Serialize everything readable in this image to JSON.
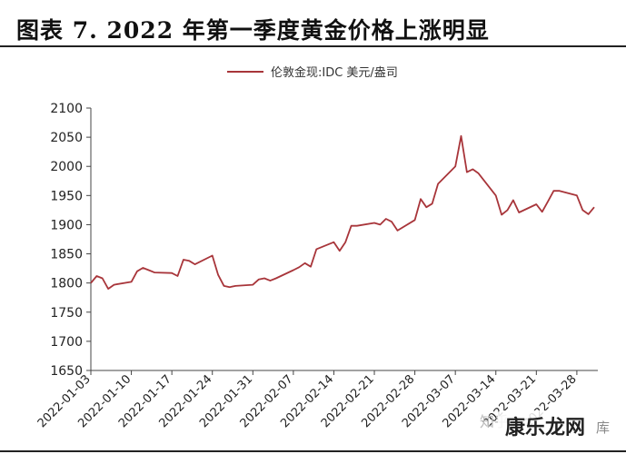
{
  "figure": {
    "title": "图表 7.  2022 年第一季度黄金价格上涨明显"
  },
  "watermark": {
    "left_text": "知乎",
    "right_text": "康乐龙网",
    "suffix": "库"
  },
  "chart_data": {
    "type": "line",
    "title": "图表 7.  2022 年第一季度黄金价格上涨明显",
    "xlabel": "",
    "ylabel": "",
    "ylim": [
      1650,
      2100
    ],
    "yticks": [
      1650,
      1700,
      1750,
      1800,
      1850,
      1900,
      1950,
      2000,
      2050,
      2100
    ],
    "xticks": [
      "2022-01-03",
      "2022-01-10",
      "2022-01-17",
      "2022-01-24",
      "2022-01-31",
      "2022-02-07",
      "2022-02-14",
      "2022-02-21",
      "2022-02-28",
      "2022-03-07",
      "2022-03-14",
      "2022-03-21",
      "2022-03-28"
    ],
    "grid": false,
    "legend_position": "top-center",
    "color": "#a8353a",
    "series": [
      {
        "name": "伦敦金现:IDC 美元/盎司",
        "x": [
          "2022-01-03",
          "2022-01-04",
          "2022-01-05",
          "2022-01-06",
          "2022-01-07",
          "2022-01-10",
          "2022-01-11",
          "2022-01-12",
          "2022-01-13",
          "2022-01-14",
          "2022-01-17",
          "2022-01-18",
          "2022-01-19",
          "2022-01-20",
          "2022-01-21",
          "2022-01-24",
          "2022-01-25",
          "2022-01-26",
          "2022-01-27",
          "2022-01-28",
          "2022-01-31",
          "2022-02-01",
          "2022-02-02",
          "2022-02-03",
          "2022-02-04",
          "2022-02-07",
          "2022-02-08",
          "2022-02-09",
          "2022-02-10",
          "2022-02-11",
          "2022-02-14",
          "2022-02-15",
          "2022-02-16",
          "2022-02-17",
          "2022-02-18",
          "2022-02-21",
          "2022-02-22",
          "2022-02-23",
          "2022-02-24",
          "2022-02-25",
          "2022-02-28",
          "2022-03-01",
          "2022-03-02",
          "2022-03-03",
          "2022-03-04",
          "2022-03-07",
          "2022-03-08",
          "2022-03-09",
          "2022-03-10",
          "2022-03-11",
          "2022-03-14",
          "2022-03-15",
          "2022-03-16",
          "2022-03-17",
          "2022-03-18",
          "2022-03-21",
          "2022-03-22",
          "2022-03-23",
          "2022-03-24",
          "2022-03-25",
          "2022-03-28",
          "2022-03-29",
          "2022-03-30",
          "2022-03-31"
        ],
        "values": [
          1800,
          1812,
          1808,
          1790,
          1797,
          1802,
          1820,
          1826,
          1822,
          1818,
          1817,
          1812,
          1840,
          1838,
          1832,
          1847,
          1814,
          1795,
          1793,
          1795,
          1797,
          1806,
          1808,
          1804,
          1808,
          1822,
          1827,
          1834,
          1828,
          1858,
          1870,
          1855,
          1870,
          1898,
          1898,
          1903,
          1900,
          1910,
          1905,
          1890,
          1908,
          1944,
          1930,
          1936,
          1970,
          2000,
          2052,
          1990,
          1995,
          1988,
          1950,
          1917,
          1925,
          1942,
          1921,
          1935,
          1922,
          1940,
          1958,
          1958,
          1950,
          1925,
          1918,
          1930
        ]
      }
    ]
  }
}
